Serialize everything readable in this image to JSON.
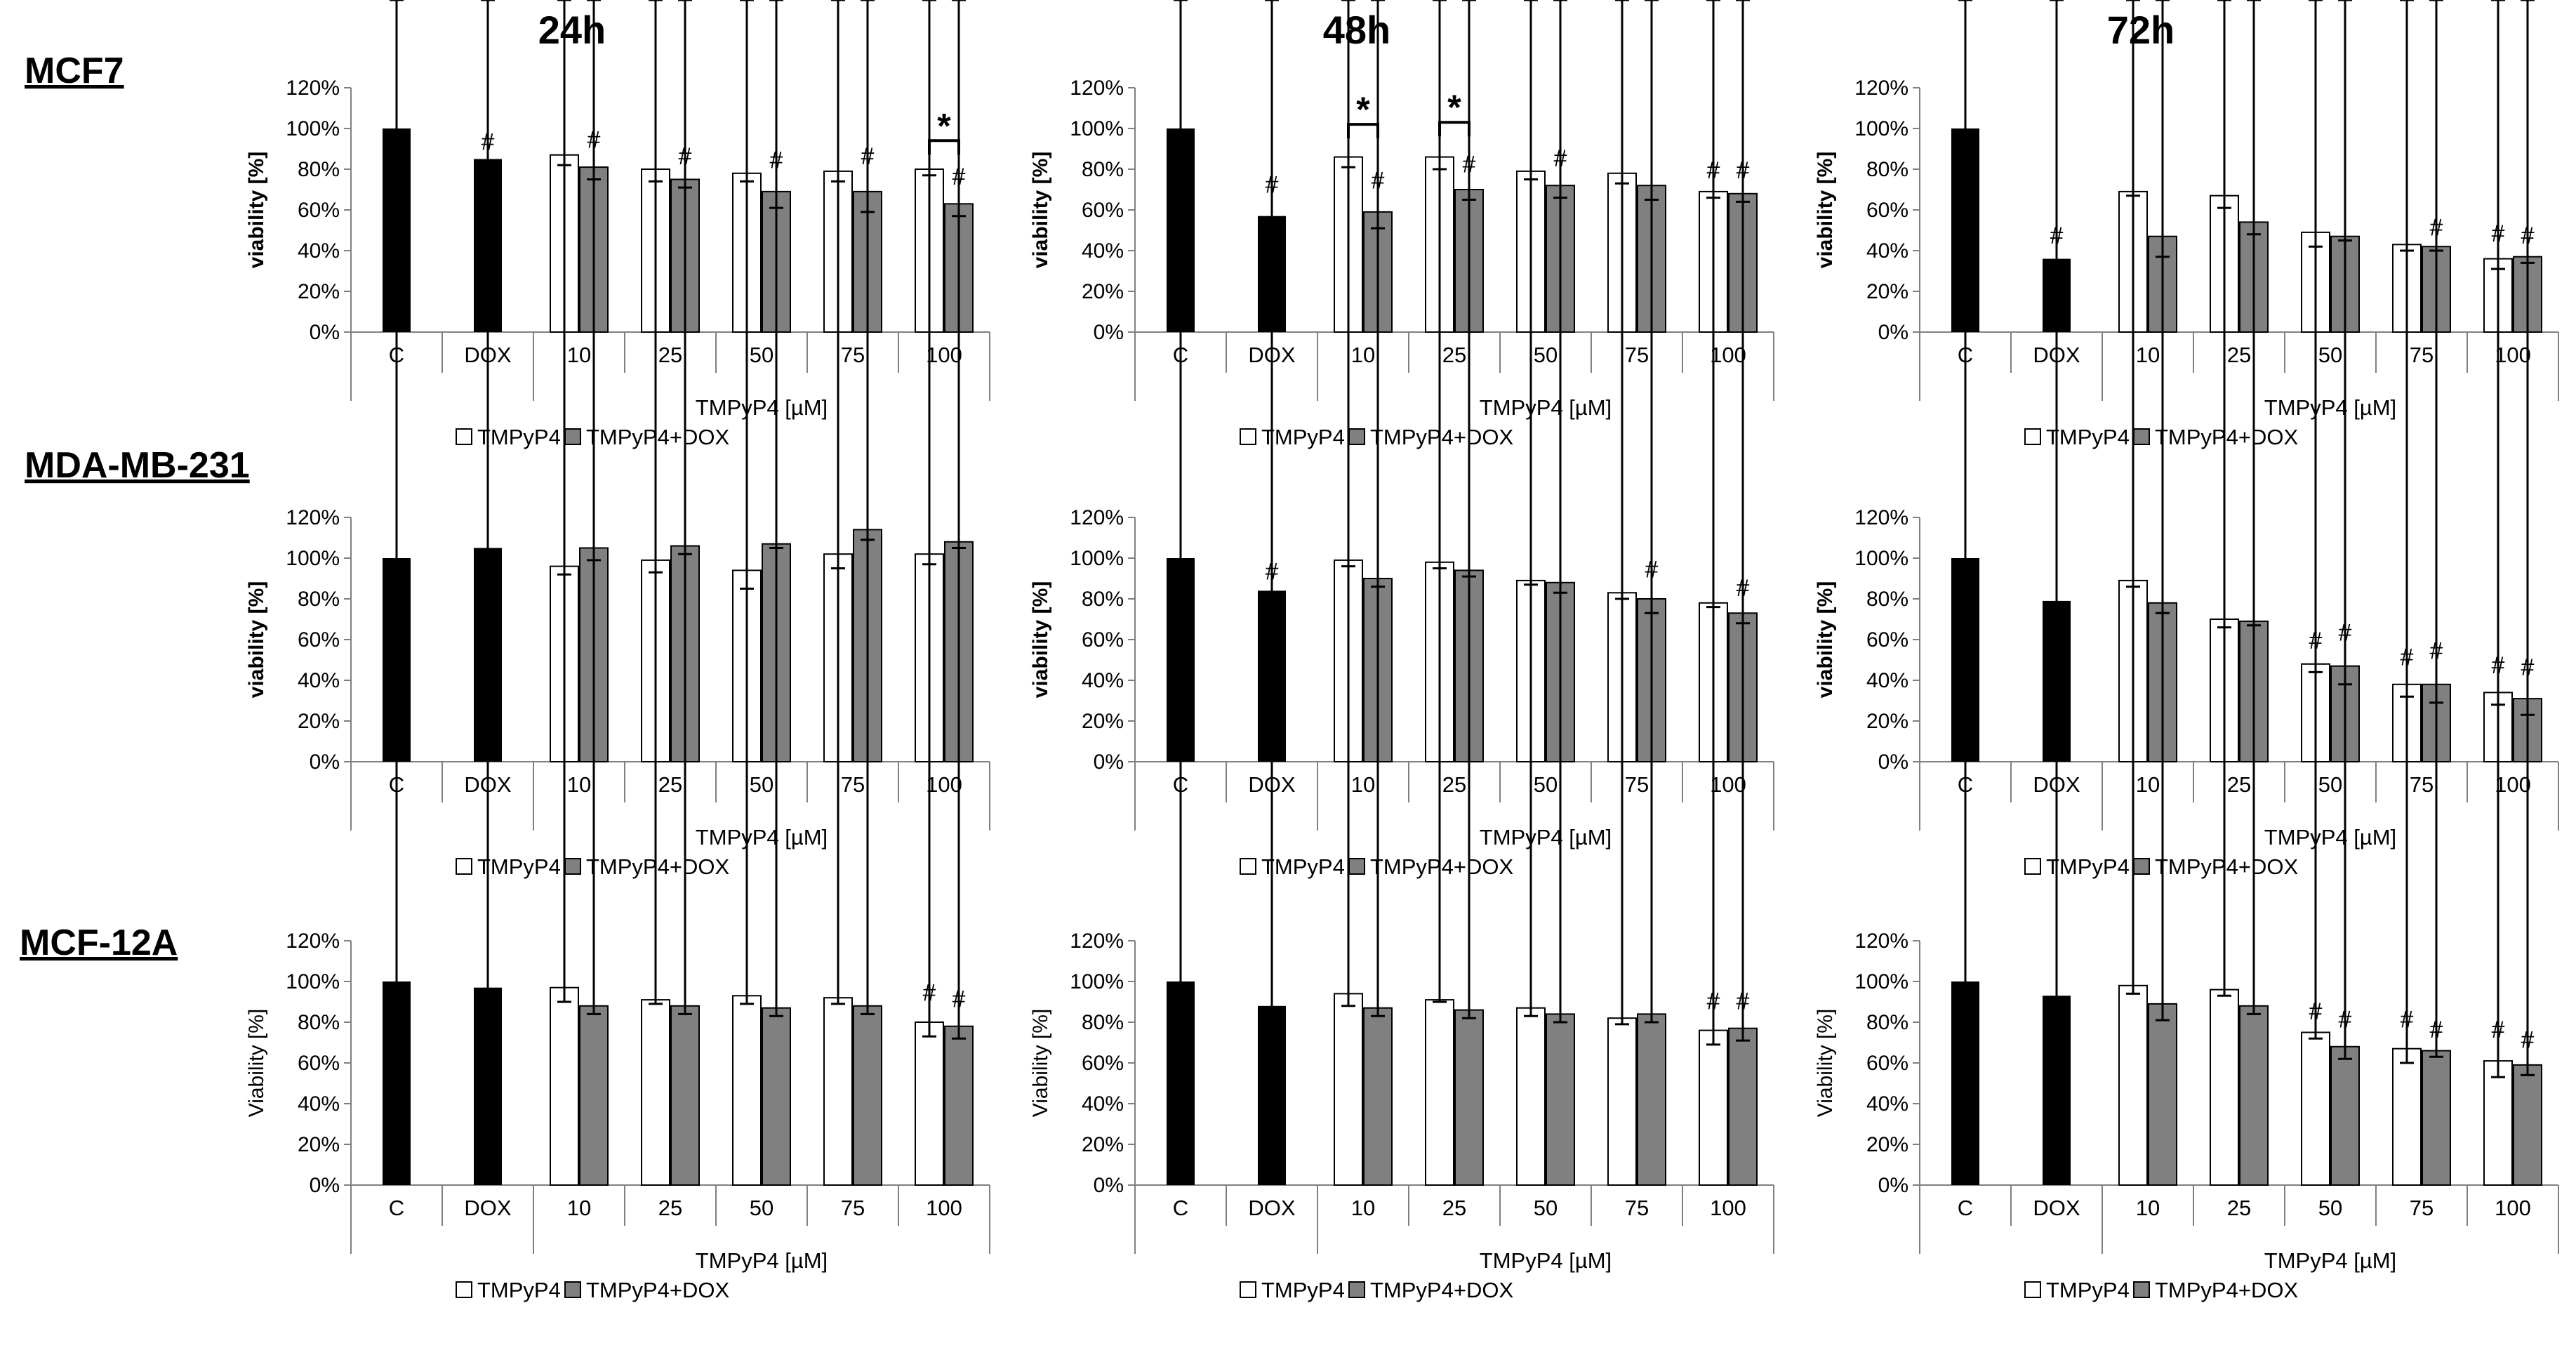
{
  "column_titles": [
    "24h",
    "48h",
    "72h"
  ],
  "row_titles": [
    "MCF7",
    "MDA-MB-231",
    "MCF-12A"
  ],
  "colors": {
    "control": "#000000",
    "tmpyp4": "#ffffff",
    "combo": "#808080",
    "axis": "#808080"
  },
  "chart_data": [
    {
      "type": "bar",
      "row": "MCF7",
      "time": "24h",
      "ylabel": "viability [%]",
      "ylabel_bold": true,
      "ylim": [
        0,
        120
      ],
      "yticks": [
        "0%",
        "20%",
        "40%",
        "60%",
        "80%",
        "100%",
        "120%"
      ],
      "categories": [
        "C",
        "DOX",
        "10",
        "25",
        "50",
        "75",
        "100"
      ],
      "group_label": "TMPyP4 [µM]",
      "legend": [
        "TMPyP4",
        "TMPyP4+DOX"
      ],
      "control": [
        {
          "label": "C",
          "value": 100,
          "err": 4,
          "mark": ""
        },
        {
          "label": "DOX",
          "value": 85,
          "err": 1,
          "mark": "#"
        }
      ],
      "tmpyp4": {
        "values": [
          87,
          80,
          78,
          79,
          80
        ],
        "errors": [
          5,
          6,
          4,
          5,
          3
        ],
        "marks": [
          "",
          "",
          "",
          "",
          ""
        ]
      },
      "combo": {
        "values": [
          81,
          75,
          69,
          69,
          63
        ],
        "errors": [
          6,
          4,
          8,
          10,
          6
        ],
        "marks": [
          "#",
          "#",
          "#",
          "#",
          "#"
        ]
      },
      "stars": [
        4
      ]
    },
    {
      "type": "bar",
      "row": "MCF7",
      "time": "48h",
      "ylabel": "viability [%]",
      "ylabel_bold": true,
      "ylim": [
        0,
        120
      ],
      "yticks": [
        "0%",
        "20%",
        "40%",
        "60%",
        "80%",
        "100%",
        "120%"
      ],
      "categories": [
        "C",
        "DOX",
        "10",
        "25",
        "50",
        "75",
        "100"
      ],
      "group_label": "TMPyP4 [µM]",
      "legend": [
        "TMPyP4",
        "TMPyP4+DOX"
      ],
      "control": [
        {
          "label": "C",
          "value": 100,
          "err": 4,
          "mark": ""
        },
        {
          "label": "DOX",
          "value": 57,
          "err": 8,
          "mark": "#"
        }
      ],
      "tmpyp4": {
        "values": [
          86,
          86,
          79,
          78,
          69
        ],
        "errors": [
          5,
          6,
          4,
          5,
          3
        ],
        "marks": [
          "",
          "",
          "",
          "",
          "#"
        ]
      },
      "combo": {
        "values": [
          59,
          70,
          72,
          72,
          68
        ],
        "errors": [
          8,
          5,
          6,
          7,
          4
        ],
        "marks": [
          "#",
          "#",
          "#",
          "",
          "#"
        ]
      },
      "stars": [
        0,
        1
      ]
    },
    {
      "type": "bar",
      "row": "MCF7",
      "time": "72h",
      "ylabel": "viability [%]",
      "ylabel_bold": true,
      "ylim": [
        0,
        120
      ],
      "yticks": [
        "0%",
        "20%",
        "40%",
        "60%",
        "80%",
        "100%",
        "120%"
      ],
      "categories": [
        "C",
        "DOX",
        "10",
        "25",
        "50",
        "75",
        "100"
      ],
      "group_label": "TMPyP4 [µM]",
      "legend": [
        "TMPyP4",
        "TMPyP4+DOX"
      ],
      "control": [
        {
          "label": "C",
          "value": 100,
          "err": 2,
          "mark": ""
        },
        {
          "label": "DOX",
          "value": 36,
          "err": 4,
          "mark": "#"
        }
      ],
      "tmpyp4": {
        "values": [
          69,
          67,
          49,
          43,
          36
        ],
        "errors": [
          2,
          6,
          7,
          3,
          5
        ],
        "marks": [
          "",
          "",
          "",
          "",
          "#"
        ]
      },
      "combo": {
        "values": [
          47,
          54,
          47,
          42,
          37
        ],
        "errors": [
          10,
          6,
          2,
          2,
          3
        ],
        "marks": [
          "",
          "",
          "",
          "#",
          "#"
        ]
      },
      "stars": []
    },
    {
      "type": "bar",
      "row": "MDA-MB-231",
      "time": "24h",
      "ylabel": "viability [%]",
      "ylabel_bold": true,
      "ylim": [
        0,
        120
      ],
      "yticks": [
        "0%",
        "20%",
        "40%",
        "60%",
        "80%",
        "100%",
        "120%"
      ],
      "categories": [
        "C",
        "DOX",
        "10",
        "25",
        "50",
        "75",
        "100"
      ],
      "group_label": "TMPyP4 [µM]",
      "legend": [
        "TMPyP4",
        "TMPyP4+DOX"
      ],
      "control": [
        {
          "label": "C",
          "value": 100,
          "err": 5,
          "mark": ""
        },
        {
          "label": "DOX",
          "value": 105,
          "err": 2,
          "mark": ""
        }
      ],
      "tmpyp4": {
        "values": [
          96,
          99,
          94,
          102,
          102
        ],
        "errors": [
          4,
          6,
          9,
          7,
          5
        ],
        "marks": [
          "",
          "",
          "",
          "",
          ""
        ]
      },
      "combo": {
        "values": [
          105,
          106,
          107,
          114,
          108
        ],
        "errors": [
          6,
          4,
          2,
          5,
          3
        ],
        "marks": [
          "",
          "",
          "",
          "",
          ""
        ]
      },
      "stars": []
    },
    {
      "type": "bar",
      "row": "MDA-MB-231",
      "time": "48h",
      "ylabel": "viability [%]",
      "ylabel_bold": true,
      "ylim": [
        0,
        120
      ],
      "yticks": [
        "0%",
        "20%",
        "40%",
        "60%",
        "80%",
        "100%",
        "120%"
      ],
      "categories": [
        "C",
        "DOX",
        "10",
        "25",
        "50",
        "75",
        "100"
      ],
      "group_label": "TMPyP4 [µM]",
      "legend": [
        "TMPyP4",
        "TMPyP4+DOX"
      ],
      "control": [
        {
          "label": "C",
          "value": 100,
          "err": 2,
          "mark": ""
        },
        {
          "label": "DOX",
          "value": 84,
          "err": 2,
          "mark": "#"
        }
      ],
      "tmpyp4": {
        "values": [
          99,
          98,
          89,
          83,
          78
        ],
        "errors": [
          3,
          3,
          2,
          3,
          2
        ],
        "marks": [
          "",
          "",
          "",
          "",
          ""
        ]
      },
      "combo": {
        "values": [
          90,
          94,
          88,
          80,
          73
        ],
        "errors": [
          4,
          3,
          5,
          7,
          5
        ],
        "marks": [
          "",
          "",
          "",
          "#",
          "#"
        ]
      },
      "stars": []
    },
    {
      "type": "bar",
      "row": "MDA-MB-231",
      "time": "72h",
      "ylabel": "viability [%]",
      "ylabel_bold": true,
      "ylim": [
        0,
        120
      ],
      "yticks": [
        "0%",
        "20%",
        "40%",
        "60%",
        "80%",
        "100%",
        "120%"
      ],
      "categories": [
        "C",
        "DOX",
        "10",
        "25",
        "50",
        "75",
        "100"
      ],
      "group_label": "TMPyP4 [µM]",
      "legend": [
        "TMPyP4",
        "TMPyP4+DOX"
      ],
      "control": [
        {
          "label": "C",
          "value": 100,
          "err": 1,
          "mark": ""
        },
        {
          "label": "DOX",
          "value": 79,
          "err": 1,
          "mark": ""
        }
      ],
      "tmpyp4": {
        "values": [
          89,
          70,
          48,
          38,
          34
        ],
        "errors": [
          3,
          4,
          4,
          6,
          6
        ],
        "marks": [
          "",
          "",
          "#",
          "#",
          "#"
        ]
      },
      "combo": {
        "values": [
          78,
          69,
          47,
          38,
          31
        ],
        "errors": [
          5,
          2,
          9,
          9,
          8
        ],
        "marks": [
          "",
          "",
          "#",
          "#",
          "#"
        ]
      },
      "stars": []
    },
    {
      "type": "bar",
      "row": "MCF-12A",
      "time": "24h",
      "ylabel": "Viability [%]",
      "ylabel_bold": false,
      "ylim": [
        0,
        120
      ],
      "yticks": [
        "0%",
        "20%",
        "40%",
        "60%",
        "80%",
        "100%",
        "120%"
      ],
      "categories": [
        "C",
        "DOX",
        "10",
        "25",
        "50",
        "75",
        "100"
      ],
      "group_label": "TMPyP4 [µM]",
      "legend": [
        "TMPyP4",
        "TMPyP4+DOX"
      ],
      "control": [
        {
          "label": "C",
          "value": 100,
          "err": 3,
          "mark": ""
        },
        {
          "label": "DOX",
          "value": 97,
          "err": 1,
          "mark": ""
        }
      ],
      "tmpyp4": {
        "values": [
          97,
          91,
          93,
          92,
          80
        ],
        "errors": [
          7,
          2,
          4,
          3,
          7
        ],
        "marks": [
          "",
          "",
          "",
          "",
          "#"
        ]
      },
      "combo": {
        "values": [
          88,
          88,
          87,
          88,
          78
        ],
        "errors": [
          4,
          4,
          4,
          4,
          6
        ],
        "marks": [
          "",
          "",
          "",
          "",
          "#"
        ]
      },
      "stars": []
    },
    {
      "type": "bar",
      "row": "MCF-12A",
      "time": "48h",
      "ylabel": "Viability [%]",
      "ylabel_bold": false,
      "ylim": [
        0,
        120
      ],
      "yticks": [
        "0%",
        "20%",
        "40%",
        "60%",
        "80%",
        "100%",
        "120%"
      ],
      "categories": [
        "C",
        "DOX",
        "10",
        "25",
        "50",
        "75",
        "100"
      ],
      "group_label": "TMPyP4 [µM]",
      "legend": [
        "TMPyP4",
        "TMPyP4+DOX"
      ],
      "control": [
        {
          "label": "C",
          "value": 100,
          "err": 2,
          "mark": ""
        },
        {
          "label": "DOX",
          "value": 88,
          "err": 2,
          "mark": ""
        }
      ],
      "tmpyp4": {
        "values": [
          94,
          91,
          87,
          82,
          76
        ],
        "errors": [
          6,
          1,
          4,
          3,
          7
        ],
        "marks": [
          "",
          "",
          "",
          "",
          "#"
        ]
      },
      "combo": {
        "values": [
          87,
          86,
          84,
          84,
          77
        ],
        "errors": [
          4,
          4,
          4,
          4,
          6
        ],
        "marks": [
          "",
          "",
          "",
          "",
          "#"
        ]
      },
      "stars": []
    },
    {
      "type": "bar",
      "row": "MCF-12A",
      "time": "72h",
      "ylabel": "Viability [%]",
      "ylabel_bold": false,
      "ylim": [
        0,
        120
      ],
      "yticks": [
        "0%",
        "20%",
        "40%",
        "60%",
        "80%",
        "100%",
        "120%"
      ],
      "categories": [
        "C",
        "DOX",
        "10",
        "25",
        "50",
        "75",
        "100"
      ],
      "group_label": "TMPyP4 [µM]",
      "legend": [
        "TMPyP4",
        "TMPyP4+DOX"
      ],
      "control": [
        {
          "label": "C",
          "value": 100,
          "err": 7,
          "mark": ""
        },
        {
          "label": "DOX",
          "value": 93,
          "err": 9,
          "mark": ""
        }
      ],
      "tmpyp4": {
        "values": [
          98,
          96,
          75,
          67,
          61
        ],
        "errors": [
          4,
          3,
          3,
          7,
          8
        ],
        "marks": [
          "",
          "",
          "#",
          "#",
          "#"
        ]
      },
      "combo": {
        "values": [
          89,
          88,
          68,
          66,
          59
        ],
        "errors": [
          8,
          4,
          6,
          3,
          5
        ],
        "marks": [
          "",
          "",
          "#",
          "#",
          "#"
        ]
      },
      "stars": []
    }
  ]
}
